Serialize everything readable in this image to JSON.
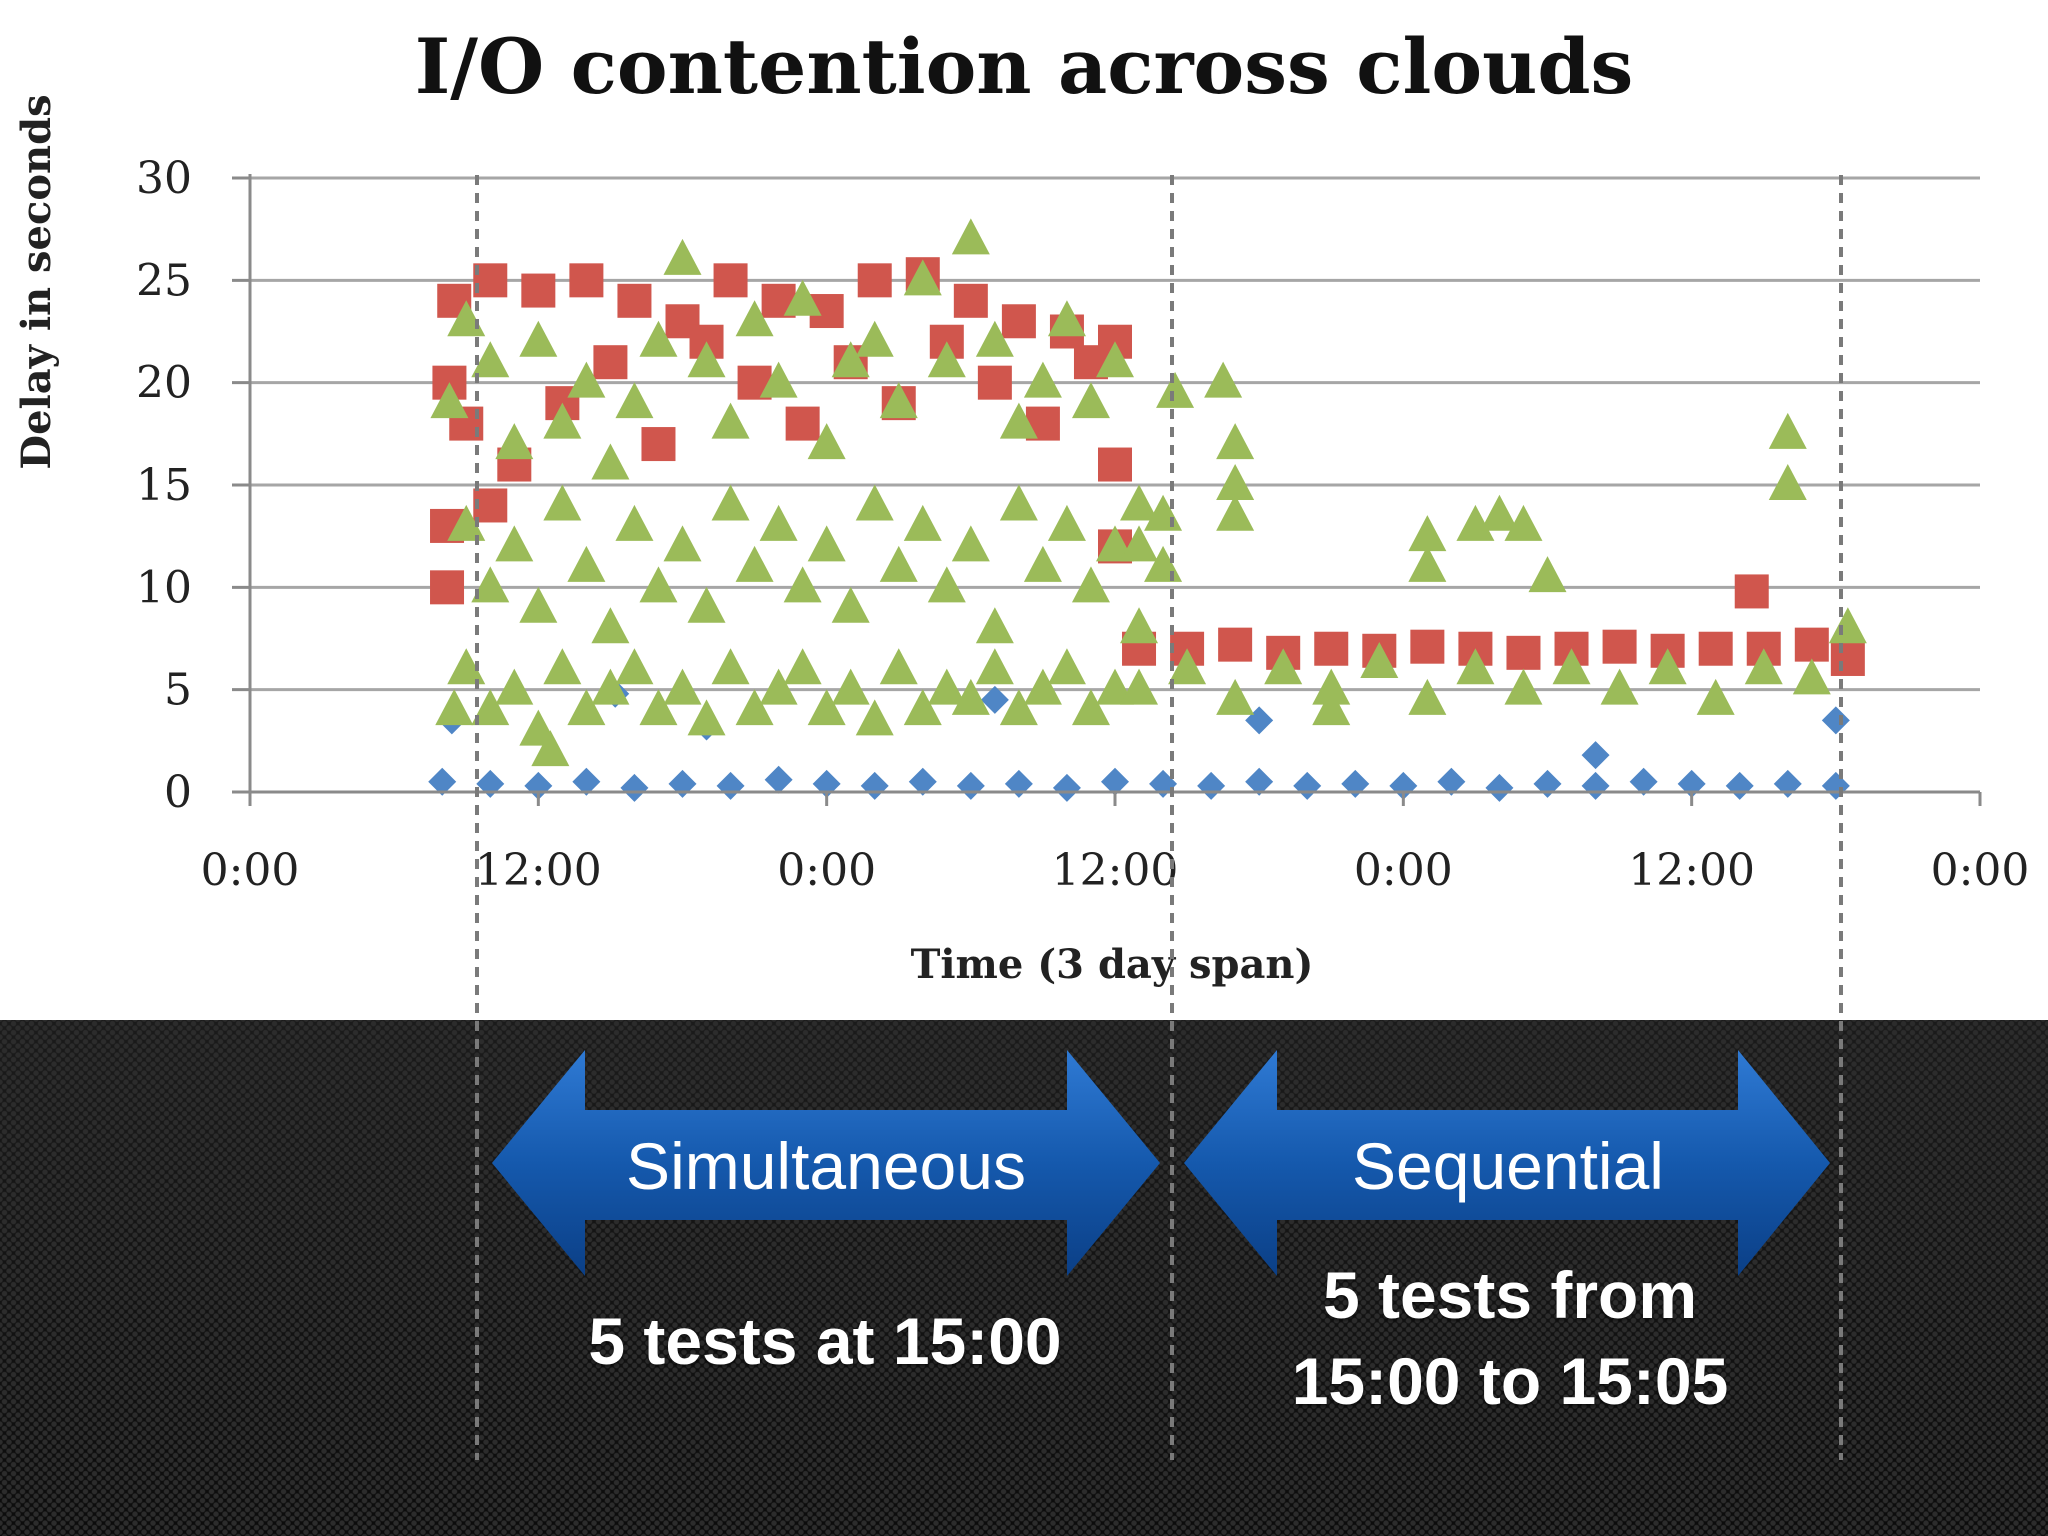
{
  "chart_data": {
    "type": "scatter",
    "title": "I/O contention across clouds",
    "xlabel": "Time (3 day span)",
    "ylabel": "Delay in seconds",
    "ylim": [
      0,
      30
    ],
    "yticks": [
      "0",
      "5",
      "10",
      "15",
      "20",
      "25",
      "30"
    ],
    "xticks": [
      "0:00",
      "12:00",
      "0:00",
      "12:00",
      "0:00",
      "12:00",
      "0:00"
    ],
    "grid": true,
    "xlim_hours": [
      0,
      72
    ],
    "series": [
      {
        "color": "#4f86c6",
        "marker": "diamond",
        "points": [
          [
            8,
            0.5
          ],
          [
            10,
            0.4
          ],
          [
            12,
            0.3
          ],
          [
            14,
            0.5
          ],
          [
            16,
            0.2
          ],
          [
            18,
            0.4
          ],
          [
            20,
            0.3
          ],
          [
            22,
            0.6
          ],
          [
            24,
            0.4
          ],
          [
            26,
            0.3
          ],
          [
            28,
            0.5
          ],
          [
            30,
            0.3
          ],
          [
            32,
            0.4
          ],
          [
            34,
            0.2
          ],
          [
            36,
            0.5
          ],
          [
            38,
            0.4
          ],
          [
            40,
            0.3
          ],
          [
            42,
            0.5
          ],
          [
            44,
            0.3
          ],
          [
            46,
            0.4
          ],
          [
            48,
            0.3
          ],
          [
            50,
            0.5
          ],
          [
            52,
            0.2
          ],
          [
            54,
            0.4
          ],
          [
            56,
            0.3
          ],
          [
            58,
            0.5
          ],
          [
            60,
            0.4
          ],
          [
            62,
            0.3
          ],
          [
            64,
            0.4
          ],
          [
            66,
            0.3
          ],
          [
            8.4,
            3.5
          ],
          [
            15.2,
            4.8
          ],
          [
            19,
            3.2
          ],
          [
            31,
            4.5
          ],
          [
            42,
            3.5
          ],
          [
            56,
            1.8
          ],
          [
            66,
            3.5
          ]
        ]
      },
      {
        "color": "#d0564d",
        "marker": "square",
        "points": [
          [
            8.5,
            24
          ],
          [
            10,
            25
          ],
          [
            12,
            24.5
          ],
          [
            14,
            25
          ],
          [
            16,
            24
          ],
          [
            18,
            23
          ],
          [
            20,
            25
          ],
          [
            22,
            24
          ],
          [
            24,
            23.5
          ],
          [
            26,
            25
          ],
          [
            28,
            25.3
          ],
          [
            30,
            24
          ],
          [
            32,
            23
          ],
          [
            34,
            22.5
          ],
          [
            36,
            22
          ],
          [
            8.3,
            20
          ],
          [
            9,
            18
          ],
          [
            11,
            16
          ],
          [
            13,
            19
          ],
          [
            15,
            21
          ],
          [
            17,
            17
          ],
          [
            19,
            22
          ],
          [
            21,
            20
          ],
          [
            23,
            18
          ],
          [
            25,
            21
          ],
          [
            27,
            19
          ],
          [
            29,
            22
          ],
          [
            31,
            20
          ],
          [
            33,
            18
          ],
          [
            35,
            21
          ],
          [
            8.2,
            13
          ],
          [
            8.2,
            10
          ],
          [
            10,
            14
          ],
          [
            36,
            16
          ],
          [
            36,
            12
          ],
          [
            37,
            7
          ],
          [
            39,
            7
          ],
          [
            41,
            7.2
          ],
          [
            43,
            6.8
          ],
          [
            45,
            7
          ],
          [
            47,
            6.9
          ],
          [
            49,
            7.1
          ],
          [
            51,
            7
          ],
          [
            53,
            6.8
          ],
          [
            55,
            7
          ],
          [
            57,
            7.1
          ],
          [
            59,
            6.9
          ],
          [
            61,
            7
          ],
          [
            63,
            7
          ],
          [
            65,
            7.2
          ],
          [
            66.5,
            6.5
          ],
          [
            62.5,
            9.8
          ]
        ]
      },
      {
        "color": "#9bbb59",
        "marker": "triangle",
        "points": [
          [
            8.3,
            19
          ],
          [
            9,
            23
          ],
          [
            10,
            21
          ],
          [
            11,
            17
          ],
          [
            12,
            22
          ],
          [
            13,
            18
          ],
          [
            14,
            20
          ],
          [
            15,
            16
          ],
          [
            16,
            19
          ],
          [
            17,
            22
          ],
          [
            18,
            26
          ],
          [
            19,
            21
          ],
          [
            20,
            18
          ],
          [
            21,
            23
          ],
          [
            22,
            20
          ],
          [
            23,
            24
          ],
          [
            24,
            17
          ],
          [
            25,
            21
          ],
          [
            26,
            22
          ],
          [
            27,
            19
          ],
          [
            28,
            25
          ],
          [
            29,
            21
          ],
          [
            30,
            27
          ],
          [
            31,
            22
          ],
          [
            32,
            18
          ],
          [
            33,
            20
          ],
          [
            34,
            23
          ],
          [
            35,
            19
          ],
          [
            36,
            21
          ],
          [
            9,
            13
          ],
          [
            10,
            10
          ],
          [
            11,
            12
          ],
          [
            12,
            9
          ],
          [
            13,
            14
          ],
          [
            14,
            11
          ],
          [
            15,
            8
          ],
          [
            16,
            13
          ],
          [
            17,
            10
          ],
          [
            18,
            12
          ],
          [
            19,
            9
          ],
          [
            20,
            14
          ],
          [
            21,
            11
          ],
          [
            22,
            13
          ],
          [
            23,
            10
          ],
          [
            24,
            12
          ],
          [
            25,
            9
          ],
          [
            26,
            14
          ],
          [
            27,
            11
          ],
          [
            28,
            13
          ],
          [
            29,
            10
          ],
          [
            30,
            12
          ],
          [
            31,
            8
          ],
          [
            32,
            14
          ],
          [
            33,
            11
          ],
          [
            34,
            13
          ],
          [
            35,
            10
          ],
          [
            36,
            12
          ],
          [
            9,
            6
          ],
          [
            10,
            4
          ],
          [
            11,
            5
          ],
          [
            12,
            3
          ],
          [
            13,
            6
          ],
          [
            14,
            4
          ],
          [
            15,
            5
          ],
          [
            16,
            6
          ],
          [
            17,
            4
          ],
          [
            18,
            5
          ],
          [
            19,
            3.5
          ],
          [
            20,
            6
          ],
          [
            21,
            4
          ],
          [
            22,
            5
          ],
          [
            23,
            6
          ],
          [
            24,
            4
          ],
          [
            25,
            5
          ],
          [
            26,
            3.5
          ],
          [
            27,
            6
          ],
          [
            28,
            4
          ],
          [
            29,
            5
          ],
          [
            30,
            4.5
          ],
          [
            31,
            6
          ],
          [
            32,
            4
          ],
          [
            33,
            5
          ],
          [
            34,
            6
          ],
          [
            35,
            4
          ],
          [
            36,
            5
          ],
          [
            12.5,
            2
          ],
          [
            8.5,
            4
          ],
          [
            37,
            12
          ],
          [
            37,
            14
          ],
          [
            38,
            11
          ],
          [
            38,
            13.5
          ],
          [
            38.5,
            19.5
          ],
          [
            40.5,
            20
          ],
          [
            41,
            17
          ],
          [
            41,
            15
          ],
          [
            41,
            13.5
          ],
          [
            49,
            12.5
          ],
          [
            49,
            11
          ],
          [
            51,
            13
          ],
          [
            52,
            13.5
          ],
          [
            53,
            13
          ],
          [
            54,
            10.5
          ],
          [
            37,
            8
          ],
          [
            37,
            5
          ],
          [
            39,
            6
          ],
          [
            41,
            4.5
          ],
          [
            43,
            6
          ],
          [
            45,
            5
          ],
          [
            47,
            6.3
          ],
          [
            49,
            4.5
          ],
          [
            51,
            6
          ],
          [
            53,
            5
          ],
          [
            55,
            6
          ],
          [
            57,
            5
          ],
          [
            59,
            6
          ],
          [
            61,
            4.5
          ],
          [
            63,
            6
          ],
          [
            65,
            5.5
          ],
          [
            66.5,
            8
          ],
          [
            64,
            17.5
          ],
          [
            64,
            15
          ],
          [
            45,
            4
          ]
        ]
      }
    ]
  },
  "annotations": {
    "left_arrow_label": "Simultaneous",
    "right_arrow_label": "Sequential",
    "left_note": "5 tests at 15:00",
    "right_note_line1": "5 tests from",
    "right_note_line2": "15:00 to 15:05"
  }
}
